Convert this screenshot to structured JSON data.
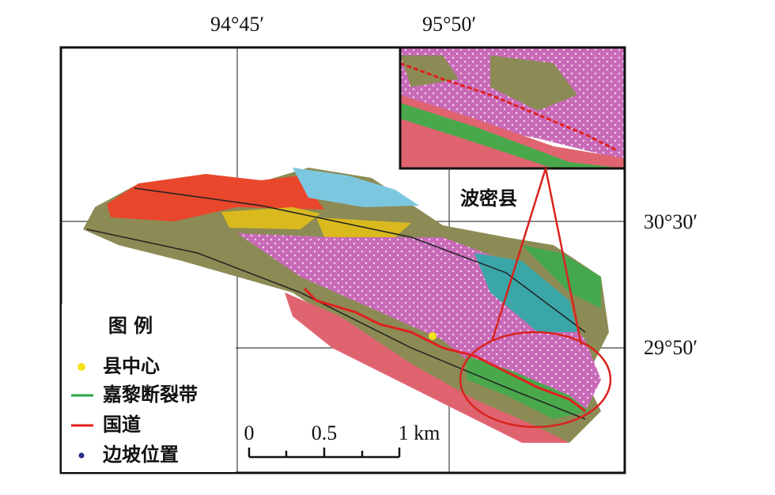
{
  "coordinates": {
    "top": [
      "94°45′",
      "95°50′"
    ],
    "right": [
      "30°30′",
      "29°50′"
    ]
  },
  "place_label": "波密县",
  "legend": {
    "title": "图 例",
    "items": [
      {
        "label": "县中心"
      },
      {
        "label": "嘉黎断裂带"
      },
      {
        "label": "国道"
      },
      {
        "label": "边坡位置"
      }
    ]
  },
  "scale_bar": {
    "labels": [
      "0",
      "0.5",
      "1 km"
    ]
  }
}
